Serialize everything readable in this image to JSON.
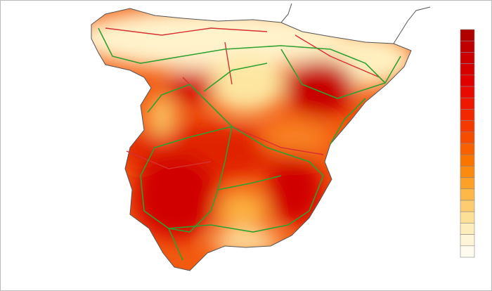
{
  "legend": {
    "colors": [
      "#b00000",
      "#c00000",
      "#cc0000",
      "#d60000",
      "#e00000",
      "#e80a00",
      "#ee1800",
      "#f22800",
      "#f43a00",
      "#f64c00",
      "#f86000",
      "#fa7400",
      "#fb8a10",
      "#fca028",
      "#fdb848",
      "#fdcc70",
      "#fde098",
      "#fdecbc",
      "#fef4d8",
      "#fffbef"
    ]
  }
}
